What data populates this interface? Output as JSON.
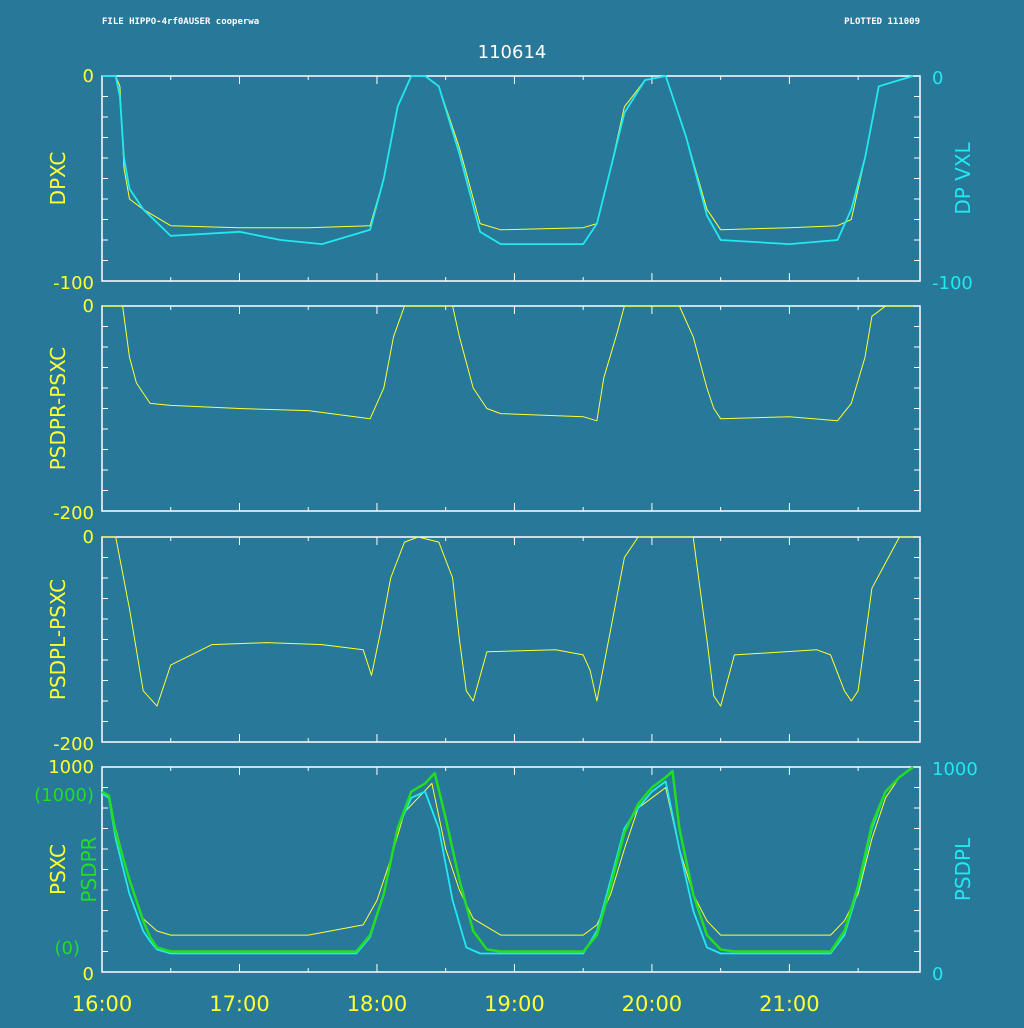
{
  "header": {
    "file_text": "FILE HIPPO-4rf0AUSER cooperwa",
    "plotted_text": "PLOTTED 111009",
    "title": "110614"
  },
  "colors": {
    "background": "#277899",
    "axis": "#ffffff",
    "yellow": "#ffff33",
    "cyan": "#22e8f0",
    "green": "#22dd22"
  },
  "chart_data": [
    {
      "type": "line",
      "panel": 1,
      "left_label": "DPXC",
      "right_label": "DP VXL",
      "ylim": [
        -100,
        0
      ],
      "left_ticks": [
        "0",
        "-100"
      ],
      "right_ticks": [
        "0",
        "-100"
      ],
      "series": [
        {
          "color": "yellow",
          "x": [
            16.0,
            16.1,
            16.13,
            16.16,
            16.2,
            16.3,
            16.5,
            17.0,
            17.5,
            17.95,
            18.05,
            18.15,
            18.25,
            18.35,
            18.45,
            18.6,
            18.75,
            18.9,
            19.5,
            19.6,
            19.7,
            19.8,
            19.95,
            20.1,
            20.25,
            20.4,
            20.5,
            21.0,
            21.35,
            21.45,
            21.55,
            21.65,
            21.9
          ],
          "y": [
            0,
            0,
            -5,
            -45,
            -60,
            -65,
            -73,
            -74,
            -74,
            -73,
            -50,
            -15,
            0,
            0,
            -5,
            -35,
            -72,
            -75,
            -74,
            -72,
            -45,
            -15,
            -2,
            0,
            -30,
            -65,
            -75,
            -74,
            -73,
            -70,
            -40,
            -5,
            0
          ]
        },
        {
          "color": "cyan",
          "x": [
            16.0,
            16.1,
            16.13,
            16.16,
            16.2,
            16.3,
            16.5,
            17.0,
            17.3,
            17.6,
            17.95,
            18.05,
            18.15,
            18.25,
            18.35,
            18.45,
            18.6,
            18.75,
            18.9,
            19.5,
            19.6,
            19.7,
            19.8,
            19.95,
            20.1,
            20.25,
            20.4,
            20.5,
            21.0,
            21.35,
            21.45,
            21.55,
            21.65,
            21.9
          ],
          "y": [
            0,
            0,
            -10,
            -40,
            -55,
            -65,
            -78,
            -76,
            -80,
            -82,
            -75,
            -50,
            -15,
            0,
            0,
            -5,
            -38,
            -76,
            -82,
            -82,
            -72,
            -45,
            -18,
            -2,
            0,
            -30,
            -68,
            -80,
            -82,
            -80,
            -65,
            -40,
            -5,
            0
          ]
        }
      ]
    },
    {
      "type": "line",
      "panel": 2,
      "left_label": "PSDPR-PSXC",
      "ylim": [
        -200,
        0
      ],
      "left_ticks": [
        "0",
        "-200"
      ],
      "series": [
        {
          "color": "yellow",
          "x": [
            16.0,
            16.15,
            16.2,
            16.25,
            16.3,
            16.35,
            16.5,
            17.0,
            17.5,
            17.95,
            18.05,
            18.12,
            18.2,
            18.55,
            18.6,
            18.7,
            18.8,
            18.9,
            19.5,
            19.6,
            19.65,
            19.75,
            19.8,
            20.2,
            20.3,
            20.4,
            20.45,
            20.5,
            21.0,
            21.35,
            21.45,
            21.55,
            21.6,
            21.7,
            21.9
          ],
          "y": [
            0,
            0,
            -50,
            -75,
            -85,
            -95,
            -97,
            -100,
            -102,
            -110,
            -80,
            -30,
            0,
            0,
            -30,
            -80,
            -100,
            -105,
            -108,
            -112,
            -70,
            -25,
            0,
            0,
            -30,
            -80,
            -100,
            -110,
            -108,
            -112,
            -95,
            -50,
            -10,
            0,
            0
          ]
        }
      ]
    },
    {
      "type": "line",
      "panel": 3,
      "left_label": "PSDPL-PSXC",
      "ylim": [
        -200,
        0
      ],
      "left_ticks": [
        "0",
        "-200"
      ],
      "series": [
        {
          "color": "yellow",
          "x": [
            16.0,
            16.1,
            16.2,
            16.25,
            16.3,
            16.4,
            16.5,
            16.8,
            17.2,
            17.6,
            17.9,
            17.96,
            18.03,
            18.1,
            18.2,
            18.3,
            18.45,
            18.55,
            18.6,
            18.65,
            18.7,
            18.8,
            19.3,
            19.5,
            19.55,
            19.6,
            19.7,
            19.8,
            19.9,
            20.3,
            20.35,
            20.4,
            20.45,
            20.5,
            20.6,
            21.2,
            21.3,
            21.4,
            21.45,
            21.5,
            21.6,
            21.8,
            21.9
          ],
          "y": [
            0,
            0,
            -70,
            -110,
            -150,
            -165,
            -125,
            -105,
            -103,
            -105,
            -110,
            -135,
            -90,
            -40,
            -5,
            0,
            -5,
            -40,
            -100,
            -150,
            -160,
            -112,
            -110,
            -115,
            -130,
            -160,
            -90,
            -20,
            0,
            0,
            -50,
            -100,
            -155,
            -165,
            -115,
            -110,
            -115,
            -150,
            -160,
            -150,
            -50,
            0,
            0
          ]
        }
      ]
    },
    {
      "type": "line",
      "panel": 4,
      "left_label": "PSXC",
      "left_label2": "PSDPR",
      "right_label": "PSDPL",
      "ylim": [
        0,
        1000
      ],
      "left_ticks": [
        "1000",
        "0"
      ],
      "left_green_ticks": [
        "(1000)",
        "(0)"
      ],
      "right_ticks": [
        "1000",
        "0"
      ],
      "x_ticks": [
        "16:00",
        "17:00",
        "18:00",
        "19:00",
        "20:00",
        "21:00"
      ],
      "x_tick_values": [
        16,
        17,
        18,
        19,
        20,
        21
      ],
      "xlim": [
        16.0,
        21.95
      ],
      "series": [
        {
          "color": "yellow",
          "x": [
            16.0,
            16.05,
            16.1,
            16.2,
            16.3,
            16.4,
            16.5,
            17.5,
            17.9,
            18.0,
            18.1,
            18.2,
            18.3,
            18.4,
            18.5,
            18.6,
            18.7,
            18.9,
            19.5,
            19.6,
            19.7,
            19.8,
            19.9,
            20.0,
            20.1,
            20.2,
            20.3,
            20.4,
            20.5,
            21.3,
            21.4,
            21.5,
            21.6,
            21.7,
            21.8,
            21.9
          ],
          "y": [
            870,
            850,
            700,
            450,
            260,
            200,
            180,
            180,
            230,
            350,
            550,
            780,
            850,
            920,
            600,
            400,
            260,
            180,
            180,
            230,
            380,
            600,
            800,
            850,
            900,
            600,
            380,
            250,
            180,
            180,
            250,
            380,
            650,
            850,
            950,
            1000
          ]
        },
        {
          "color": "cyan",
          "x": [
            16.0,
            16.05,
            16.1,
            16.2,
            16.3,
            16.35,
            16.4,
            16.5,
            17.5,
            17.85,
            17.95,
            18.05,
            18.15,
            18.25,
            18.35,
            18.45,
            18.55,
            18.65,
            18.75,
            18.85,
            19.5,
            19.6,
            19.7,
            19.8,
            19.9,
            20.0,
            20.1,
            20.2,
            20.3,
            20.4,
            20.5,
            20.6,
            21.3,
            21.4,
            21.5,
            21.6,
            21.7,
            21.8,
            21.9
          ],
          "y": [
            870,
            850,
            650,
            380,
            200,
            150,
            110,
            90,
            90,
            90,
            170,
            380,
            700,
            850,
            880,
            700,
            350,
            120,
            90,
            90,
            90,
            200,
            450,
            700,
            800,
            880,
            930,
            600,
            300,
            120,
            90,
            90,
            90,
            180,
            400,
            700,
            880,
            950,
            1000
          ]
        },
        {
          "color": "green",
          "x": [
            16.0,
            16.05,
            16.1,
            16.2,
            16.3,
            16.35,
            16.4,
            16.5,
            17.5,
            17.85,
            17.95,
            18.05,
            18.15,
            18.25,
            18.35,
            18.42,
            18.5,
            18.6,
            18.7,
            18.8,
            18.9,
            19.5,
            19.6,
            19.7,
            19.8,
            19.9,
            20.0,
            20.1,
            20.15,
            20.2,
            20.3,
            20.4,
            20.5,
            20.6,
            21.3,
            21.4,
            21.5,
            21.6,
            21.7,
            21.8,
            21.9
          ],
          "y": [
            880,
            860,
            680,
            450,
            250,
            170,
            120,
            100,
            100,
            100,
            180,
            380,
            700,
            880,
            920,
            970,
            750,
            450,
            200,
            110,
            100,
            100,
            180,
            420,
            680,
            820,
            900,
            950,
            980,
            700,
            380,
            180,
            110,
            100,
            100,
            200,
            420,
            720,
            880,
            950,
            1000
          ]
        }
      ]
    }
  ]
}
